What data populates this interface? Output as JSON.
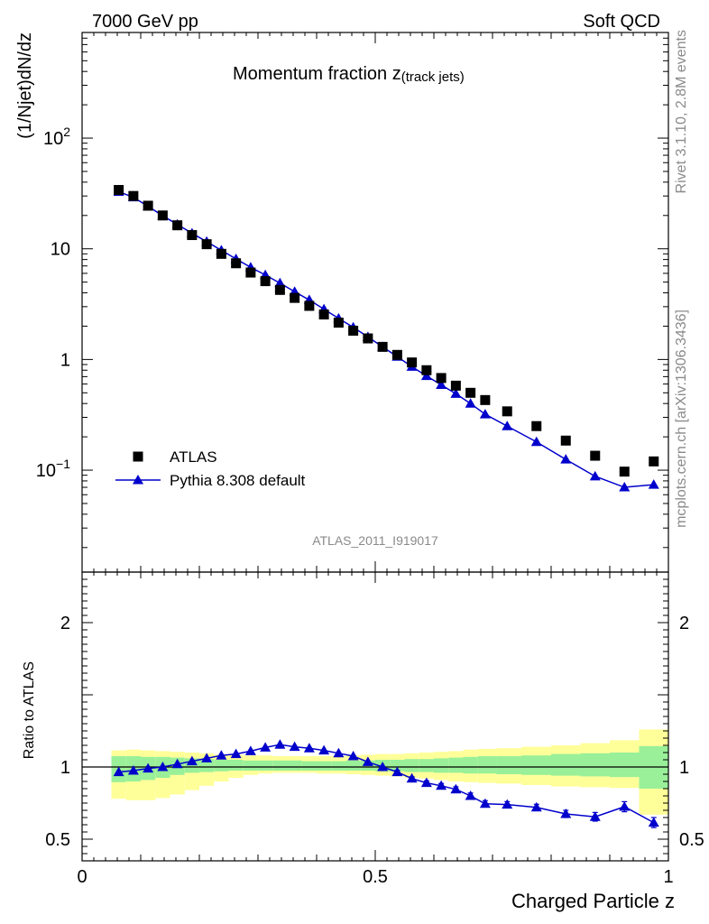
{
  "header": {
    "left": "7000 GeV pp",
    "right": "Soft QCD"
  },
  "side_labels": {
    "rivet": "Rivet 3.1.10,  2.8M events",
    "mcplots": "mcplots.cern.ch [arXiv:1306.3436]"
  },
  "chart_data": {
    "type": "scatter",
    "title": "Momentum fraction z",
    "title_suffix": "(track jets)",
    "analysis_id": "ATLAS_2011_I919017",
    "xlabel": "Charged Particle z",
    "ylabel": "(1/Njet)dN/dz",
    "ratio_ylabel": "Ratio to ATLAS",
    "xlim": [
      0,
      1
    ],
    "ylim": [
      0.012,
      900
    ],
    "yscale": "log",
    "ratio_ylim": [
      0.35,
      2.35
    ],
    "x_ticks": [
      "0",
      "0.5",
      "1"
    ],
    "y_ticks": [
      "10",
      "1"
    ],
    "y_tick_pow": [
      {
        "base": "10",
        "exp": "2"
      },
      {
        "base": "10",
        "exp": "−1"
      }
    ],
    "ratio_ticks": [
      "2",
      "1",
      "0.5"
    ],
    "legend_position": "bottom-left",
    "x": [
      0.0625,
      0.0875,
      0.1125,
      0.1375,
      0.1625,
      0.1875,
      0.2125,
      0.2375,
      0.2625,
      0.2875,
      0.3125,
      0.3375,
      0.3625,
      0.3875,
      0.4125,
      0.4375,
      0.4625,
      0.4875,
      0.5125,
      0.5375,
      0.5625,
      0.5875,
      0.6125,
      0.6375,
      0.6625,
      0.6875,
      0.725,
      0.775,
      0.825,
      0.875,
      0.925,
      0.975
    ],
    "series": [
      {
        "name": "ATLAS",
        "marker": "square",
        "color": "#000000",
        "values": [
          34.0,
          30.0,
          24.5,
          20.0,
          16.3,
          13.3,
          11.0,
          9.0,
          7.4,
          6.1,
          5.1,
          4.25,
          3.6,
          3.05,
          2.55,
          2.15,
          1.82,
          1.55,
          1.3,
          1.1,
          0.94,
          0.8,
          0.68,
          0.58,
          0.5,
          0.43,
          0.34,
          0.25,
          0.185,
          0.135,
          0.097,
          0.12
        ]
      },
      {
        "name": "Pythia 8.308 default",
        "marker": "triangle",
        "color": "#0000cc",
        "values": [
          32.8,
          29.2,
          24.2,
          19.9,
          16.6,
          13.8,
          11.6,
          9.7,
          8.1,
          6.8,
          5.8,
          4.9,
          4.1,
          3.45,
          2.85,
          2.35,
          1.95,
          1.6,
          1.3,
          1.06,
          0.86,
          0.71,
          0.59,
          0.49,
          0.4,
          0.32,
          0.25,
          0.18,
          0.125,
          0.088,
          0.07,
          0.074
        ]
      }
    ],
    "ratio": {
      "values": [
        0.965,
        0.975,
        0.99,
        1.0,
        1.02,
        1.04,
        1.06,
        1.08,
        1.09,
        1.11,
        1.135,
        1.155,
        1.14,
        1.13,
        1.115,
        1.095,
        1.075,
        1.035,
        1.0,
        0.965,
        0.92,
        0.89,
        0.87,
        0.845,
        0.8,
        0.745,
        0.74,
        0.72,
        0.675,
        0.655,
        0.725,
        0.615
      ],
      "errors": [
        0.01,
        0.01,
        0.01,
        0.01,
        0.01,
        0.01,
        0.01,
        0.01,
        0.01,
        0.01,
        0.01,
        0.01,
        0.01,
        0.01,
        0.01,
        0.01,
        0.01,
        0.01,
        0.01,
        0.012,
        0.012,
        0.014,
        0.016,
        0.018,
        0.02,
        0.022,
        0.02,
        0.022,
        0.025,
        0.03,
        0.035,
        0.035
      ],
      "band_inner_lo": [
        0.895,
        0.9,
        0.91,
        0.925,
        0.945,
        0.96,
        0.965,
        0.97,
        0.975,
        0.975,
        0.975,
        0.975,
        0.975,
        0.975,
        0.975,
        0.975,
        0.975,
        0.975,
        0.97,
        0.97,
        0.965,
        0.965,
        0.96,
        0.96,
        0.955,
        0.955,
        0.95,
        0.945,
        0.94,
        0.935,
        0.93,
        0.85
      ],
      "band_inner_hi": [
        1.075,
        1.075,
        1.07,
        1.07,
        1.065,
        1.06,
        1.055,
        1.05,
        1.05,
        1.045,
        1.045,
        1.045,
        1.045,
        1.04,
        1.04,
        1.04,
        1.045,
        1.045,
        1.05,
        1.05,
        1.055,
        1.055,
        1.06,
        1.065,
        1.07,
        1.075,
        1.075,
        1.08,
        1.09,
        1.095,
        1.1,
        1.145
      ],
      "band_outer_lo": [
        0.78,
        0.77,
        0.77,
        0.785,
        0.81,
        0.84,
        0.87,
        0.9,
        0.925,
        0.945,
        0.955,
        0.96,
        0.96,
        0.96,
        0.955,
        0.955,
        0.95,
        0.945,
        0.94,
        0.935,
        0.925,
        0.92,
        0.91,
        0.9,
        0.895,
        0.89,
        0.885,
        0.875,
        0.865,
        0.86,
        0.855,
        0.67
      ],
      "band_outer_hi": [
        1.115,
        1.12,
        1.115,
        1.11,
        1.105,
        1.1,
        1.095,
        1.085,
        1.085,
        1.08,
        1.08,
        1.075,
        1.075,
        1.075,
        1.075,
        1.075,
        1.08,
        1.085,
        1.09,
        1.09,
        1.095,
        1.1,
        1.105,
        1.11,
        1.12,
        1.125,
        1.13,
        1.14,
        1.15,
        1.165,
        1.185,
        1.26
      ],
      "inner_color": "#99f099",
      "outer_color": "#ffff99"
    }
  }
}
